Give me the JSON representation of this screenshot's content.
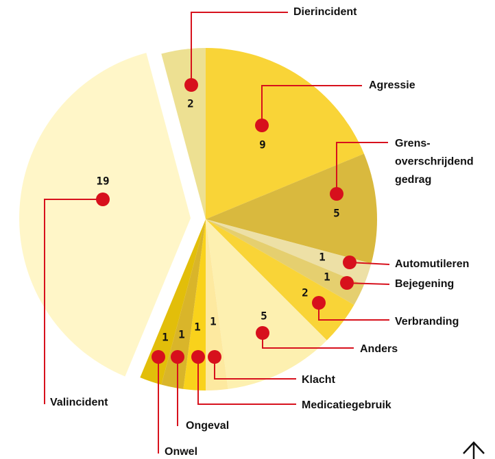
{
  "chart_data": {
    "type": "pie",
    "categories": [
      "Agressie",
      "Grens-\noverschrijdend\ngedrag",
      "Automutileren",
      "Bejegening",
      "Verbranding",
      "Anders",
      "Klacht",
      "Medicatiegebruik",
      "Ongeval",
      "Onwel",
      "Valincident",
      "Dierincident"
    ],
    "values": [
      9,
      5,
      1,
      1,
      2,
      5,
      1,
      1,
      1,
      1,
      19,
      2
    ],
    "colors": [
      "#f9d437",
      "#d9b93e",
      "#ede0a6",
      "#e5cf6f",
      "#f9d437",
      "#fdf0b0",
      "#fde9a0",
      "#f9d21b",
      "#d9b52a",
      "#e2be0a",
      "#fff6c8",
      "#ede092"
    ],
    "exploded": "Valincident"
  }
}
